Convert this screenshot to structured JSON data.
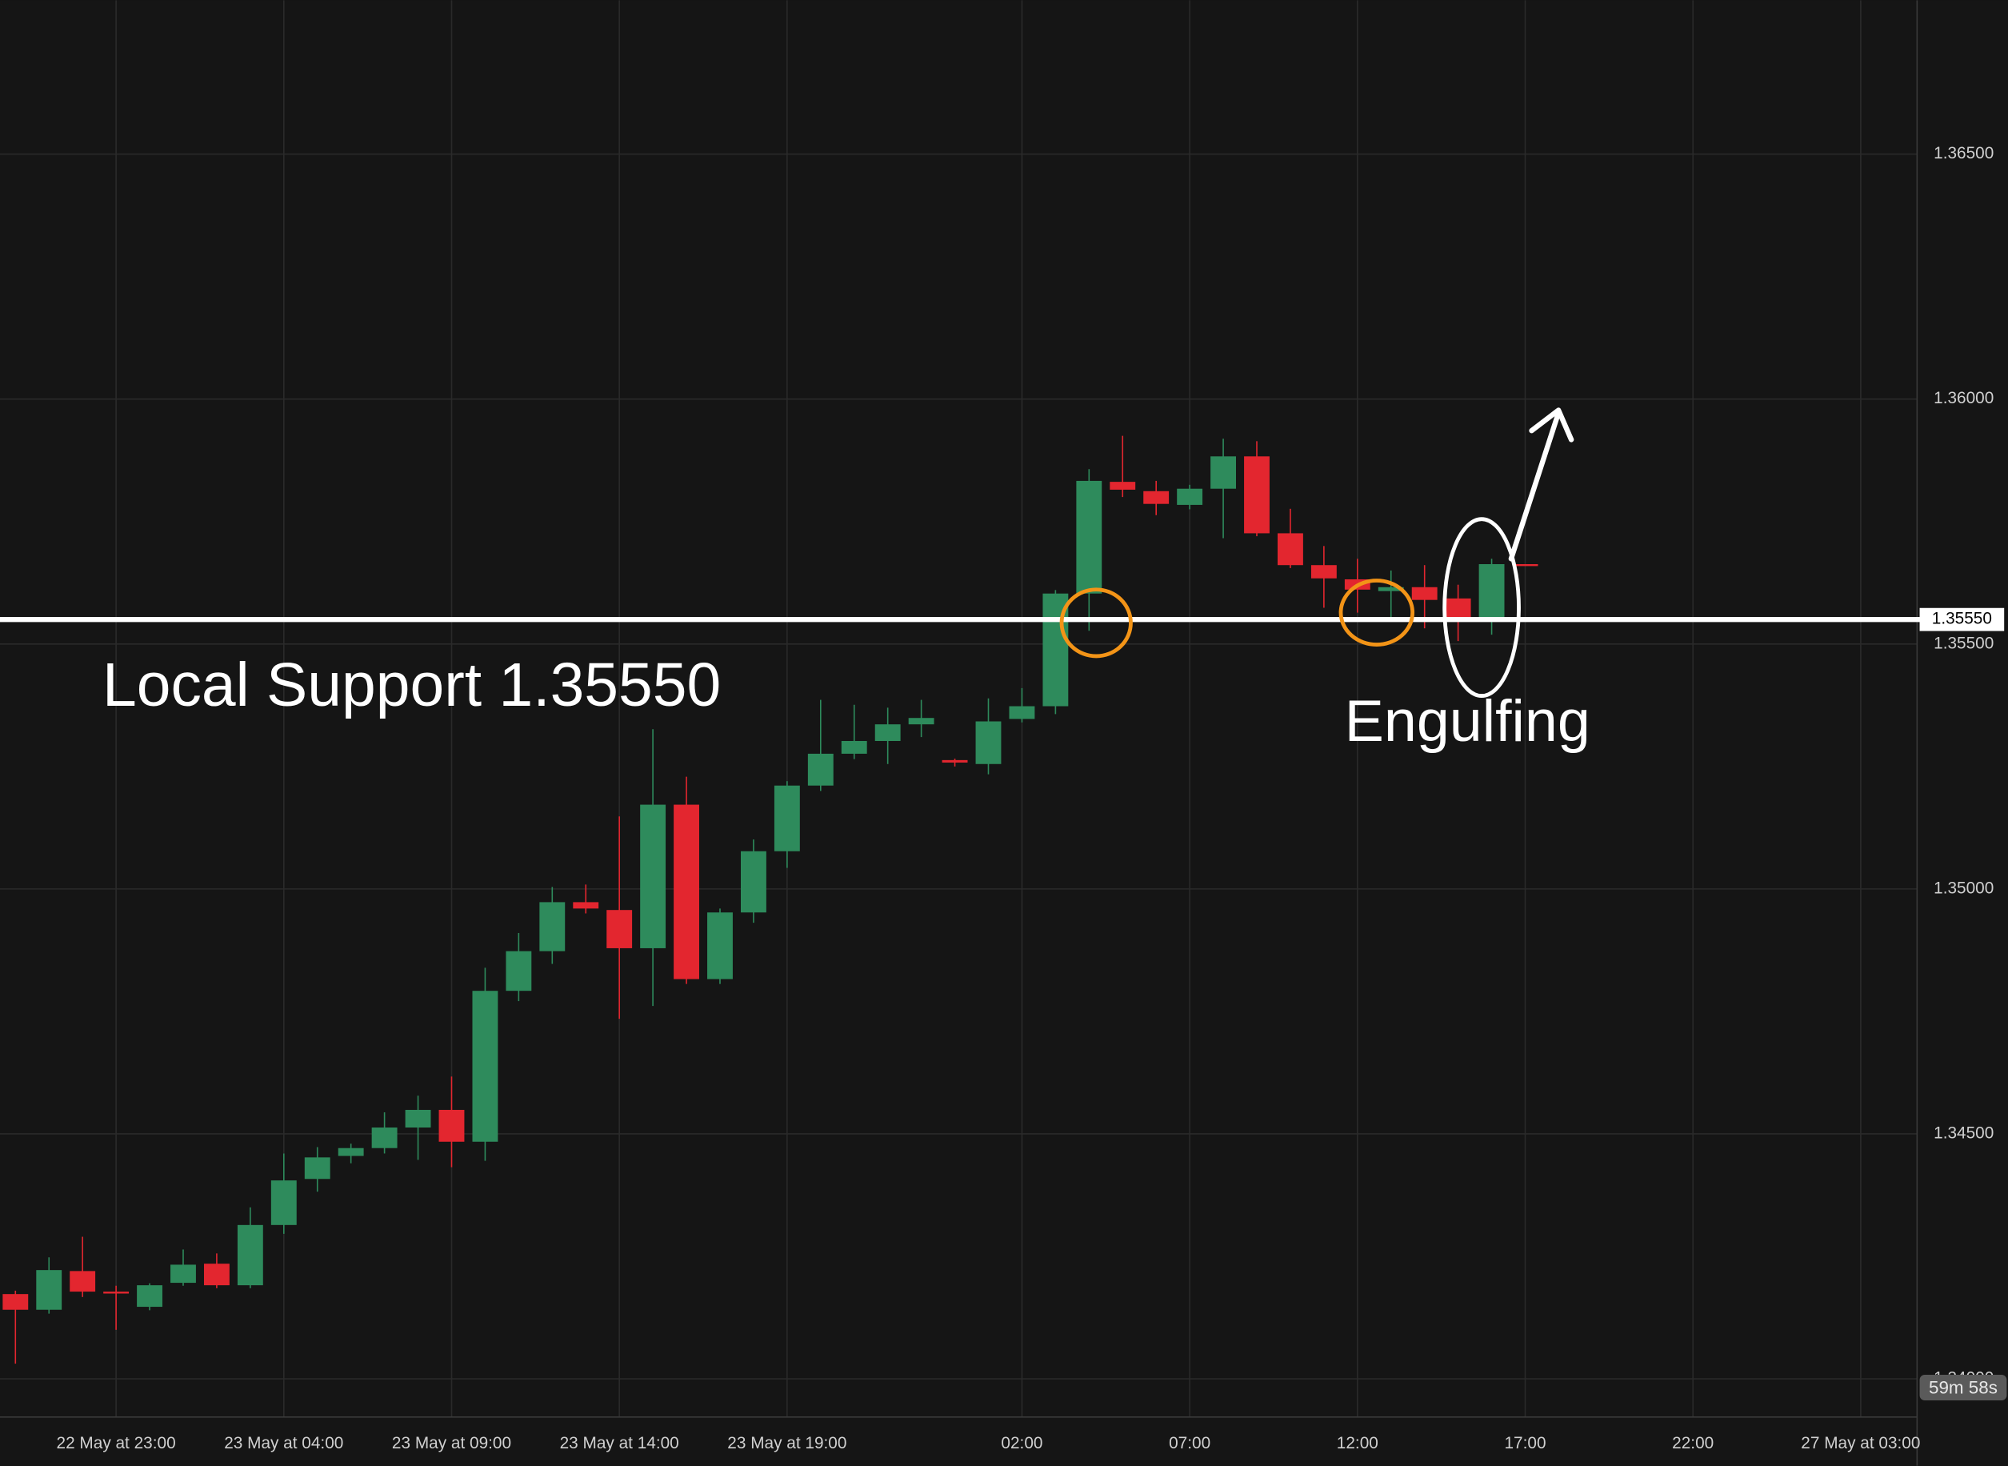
{
  "chart_data": {
    "type": "candlestick",
    "open": [
      1.34173,
      1.34141,
      1.3422,
      1.34178,
      1.34147,
      1.34196,
      1.34235,
      1.34191,
      1.34314,
      1.34408,
      1.34455,
      1.34471,
      1.34513,
      1.34549,
      1.34484,
      1.34792,
      1.34873,
      1.34973,
      1.34957,
      1.34879,
      1.35172,
      1.34816,
      1.34952,
      1.35077,
      1.35211,
      1.35276,
      1.35302,
      1.35336,
      1.35263,
      1.35255,
      1.35347,
      1.35373,
      1.35603,
      1.35831,
      1.35812,
      1.35784,
      1.35817,
      1.35883,
      1.35726,
      1.35661,
      1.35632,
      1.35608,
      1.35616,
      1.35593,
      1.35553,
      1.35663
    ],
    "high": [
      1.3418,
      1.34248,
      1.3429,
      1.3419,
      1.34195,
      1.34264,
      1.34256,
      1.3435,
      1.3446,
      1.34473,
      1.3448,
      1.34544,
      1.34578,
      1.34617,
      1.34839,
      1.3491,
      1.35004,
      1.35009,
      1.35148,
      1.35326,
      1.35229,
      1.3496,
      1.35101,
      1.3522,
      1.35386,
      1.35376,
      1.3537,
      1.35386,
      1.35266,
      1.35389,
      1.3541,
      1.3561,
      1.35857,
      1.35925,
      1.35833,
      1.35825,
      1.35919,
      1.35914,
      1.35776,
      1.357,
      1.35674,
      1.3565,
      1.35661,
      1.35621,
      1.35674,
      1.35663
    ],
    "low": [
      1.34031,
      1.34133,
      1.34167,
      1.341,
      1.3414,
      1.3419,
      1.34185,
      1.34185,
      1.34296,
      1.34382,
      1.3444,
      1.3446,
      1.34447,
      1.34432,
      1.34445,
      1.34771,
      1.34847,
      1.3495,
      1.34735,
      1.34761,
      1.34806,
      1.34806,
      1.34931,
      1.35043,
      1.352,
      1.35265,
      1.35255,
      1.3531,
      1.3525,
      1.35234,
      1.3534,
      1.35357,
      1.35527,
      1.358,
      1.35763,
      1.35775,
      1.35716,
      1.3572,
      1.35655,
      1.35574,
      1.35564,
      1.35553,
      1.35532,
      1.35506,
      1.35519,
      1.35661
    ],
    "close": [
      1.34141,
      1.34222,
      1.34178,
      1.34175,
      1.34191,
      1.34233,
      1.34191,
      1.34314,
      1.34405,
      1.34452,
      1.34471,
      1.34513,
      1.34549,
      1.34484,
      1.34792,
      1.34873,
      1.34973,
      1.3496,
      1.34879,
      1.35172,
      1.34816,
      1.34952,
      1.35077,
      1.35211,
      1.35276,
      1.35302,
      1.35336,
      1.35349,
      1.35258,
      1.35342,
      1.35373,
      1.35603,
      1.35833,
      1.35815,
      1.35786,
      1.35817,
      1.35883,
      1.35726,
      1.35661,
      1.35634,
      1.35611,
      1.35616,
      1.3559,
      1.35553,
      1.35663,
      1.35661
    ],
    "up_color": "#2e8b5c",
    "down_color": "#e3262f",
    "xlim": [
      -0.46,
      56.68
    ],
    "xticks": [
      {
        "value": 3,
        "label": "22 May at 23:00"
      },
      {
        "value": 8,
        "label": "23 May at 04:00"
      },
      {
        "value": 13,
        "label": "23 May at 09:00"
      },
      {
        "value": 18,
        "label": "23 May at 14:00"
      },
      {
        "value": 23,
        "label": "23 May at 19:00"
      },
      {
        "value": 30,
        "label": "02:00"
      },
      {
        "value": 35,
        "label": "07:00"
      },
      {
        "value": 40,
        "label": "12:00"
      },
      {
        "value": 45,
        "label": "17:00"
      },
      {
        "value": 50,
        "label": "22:00"
      },
      {
        "value": 55,
        "label": "27 May at 03:00"
      }
    ],
    "ylim": [
      1.33922,
      1.36814
    ],
    "yticks": [
      {
        "value": 1.34,
        "label": "1.34000"
      },
      {
        "value": 1.345,
        "label": "1.34500"
      },
      {
        "value": 1.35,
        "label": "1.35000"
      },
      {
        "value": 1.355,
        "label": "1.35500"
      },
      {
        "value": 1.36,
        "label": "1.36000"
      },
      {
        "value": 1.365,
        "label": "1.36500"
      }
    ],
    "grid": true,
    "support_line": {
      "value": 1.3555,
      "label": "1.35550"
    },
    "annotations": [
      "Local Support 1.35550",
      "Engulfing"
    ],
    "countdown": "59m 58s"
  }
}
